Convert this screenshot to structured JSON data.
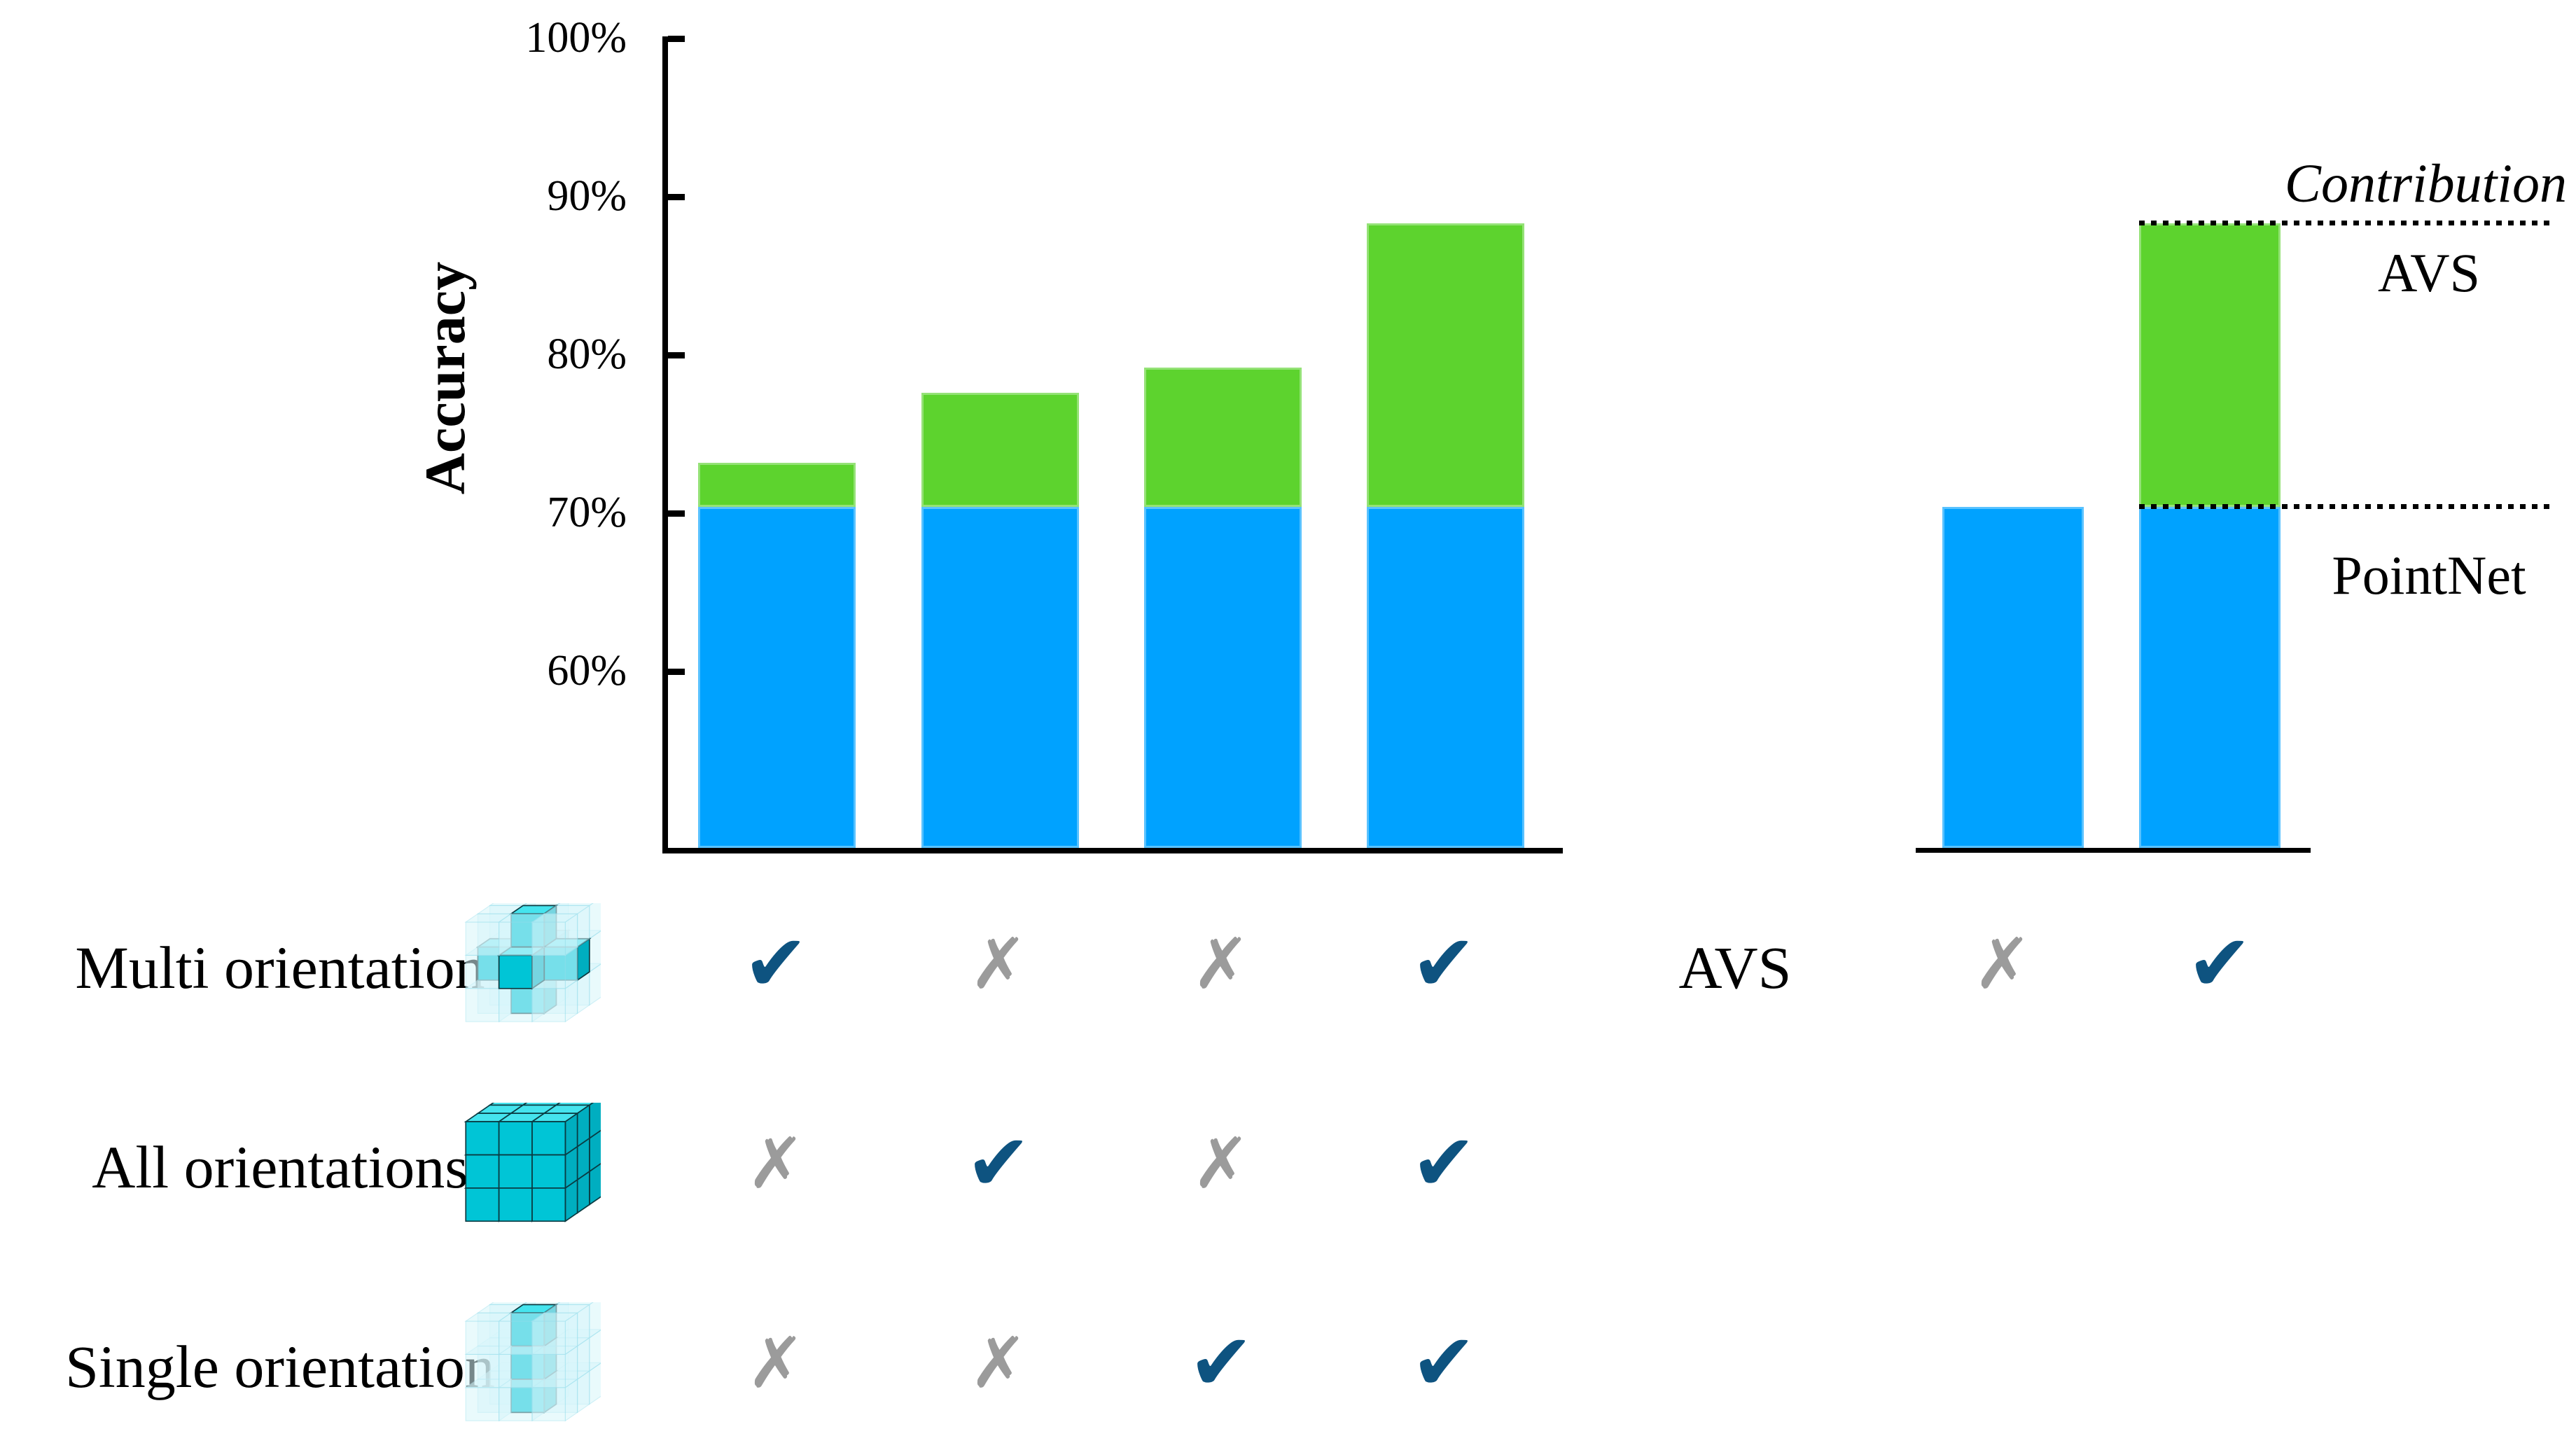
{
  "page": {
    "background": "#ffffff"
  },
  "colors": {
    "pointnet_blue": "#00A2FF",
    "avs_green": "#5DD32E",
    "check_blue": "#0E5380",
    "cross_gray": "#9B9B9B",
    "axis_black": "#000000",
    "icon_solid_front": "#00C5D6",
    "icon_solid_top": "#45E4EE",
    "icon_solid_side": "#00AEC0",
    "icon_solid_stroke": "#0A3B42",
    "icon_ghost_fill": "#D8F6FB",
    "icon_ghost_stroke": "#A8E4F0"
  },
  "chart_data": {
    "type": "bar",
    "stacked": true,
    "unit": "%",
    "ylabel": "Accuracy",
    "yticks": [
      "100%",
      "90%",
      "80%",
      "70%",
      "60%"
    ],
    "ytick_values": [
      100,
      90,
      80,
      70,
      60
    ],
    "ylim": [
      48.8,
      100.2
    ],
    "grid": false,
    "legend_position": "none",
    "left_chart": {
      "description": "Ablation: stacked accuracy bars for four training configurations",
      "series": [
        {
          "name": "PointNet",
          "color_key": "pointnet_blue",
          "values": [
            70.4,
            70.4,
            70.4,
            70.4
          ]
        },
        {
          "name": "AVS contribution",
          "color_key": "avs_green",
          "values": [
            2.8,
            7.2,
            8.8,
            17.9
          ]
        }
      ],
      "totals": [
        73.2,
        77.6,
        79.2,
        88.3
      ]
    },
    "right_chart": {
      "description": "PointNet baseline vs PointNet + AVS",
      "series": [
        {
          "name": "PointNet",
          "color_key": "pointnet_blue",
          "values": [
            70.4,
            70.4
          ]
        },
        {
          "name": "AVS contribution",
          "color_key": "avs_green",
          "values": [
            0,
            17.9
          ]
        }
      ],
      "totals": [
        70.4,
        88.3
      ]
    },
    "annotations": {
      "contribution": "Contribution",
      "avs": "AVS",
      "pointnet": "PointNet"
    }
  },
  "matrix": {
    "symbols": {
      "check": "✔",
      "cross": "✗"
    },
    "rows": [
      {
        "label": "Multi orientation",
        "icon": "multi-orientation-voxel-icon",
        "pattern": "plus-3d",
        "marks": [
          "check",
          "cross",
          "cross",
          "check"
        ]
      },
      {
        "label": "All orientations",
        "icon": "all-orientations-voxel-icon",
        "pattern": "full-cube",
        "marks": [
          "cross",
          "check",
          "cross",
          "check"
        ]
      },
      {
        "label": "Single orientation",
        "icon": "single-orientation-voxel-icon",
        "pattern": "center-column",
        "marks": [
          "cross",
          "cross",
          "check",
          "check"
        ]
      }
    ],
    "right": {
      "label": "AVS",
      "marks": [
        "cross",
        "check"
      ]
    }
  }
}
